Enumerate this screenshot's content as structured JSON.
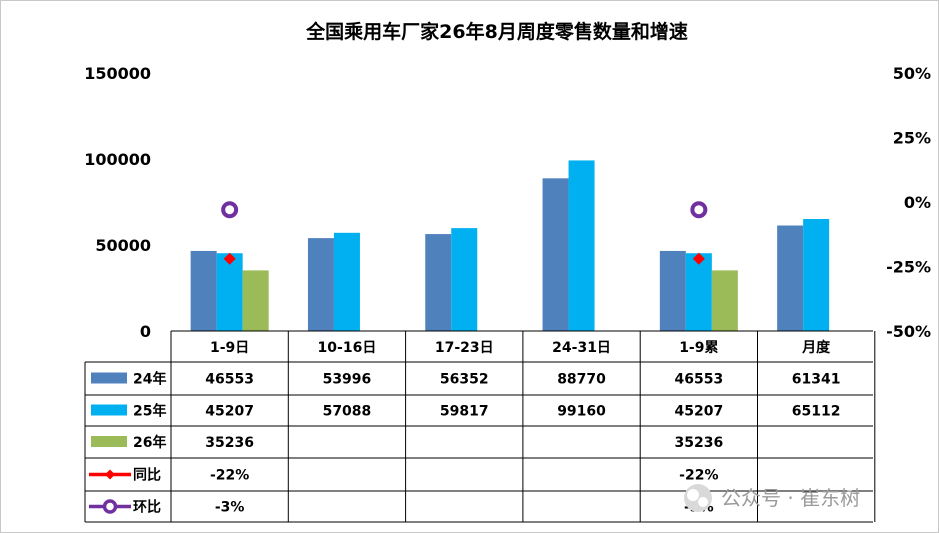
{
  "chart_data": {
    "type": "bar",
    "title": "全国乘用车厂家26年8月周度零售数量和增速",
    "categories": [
      "1-9日",
      "10-16日",
      "17-23日",
      "24-31日",
      "1-9累",
      "月度"
    ],
    "series": [
      {
        "name": "24年",
        "values": [
          46553,
          53996,
          56352,
          88770,
          46553,
          61341
        ],
        "color": "#4f81bd"
      },
      {
        "name": "25年",
        "values": [
          45207,
          57088,
          59817,
          99160,
          45207,
          65112
        ],
        "color": "#00b0f0"
      },
      {
        "name": "26年",
        "values": [
          35236,
          null,
          null,
          null,
          35236,
          null
        ],
        "color": "#9bbb59"
      }
    ],
    "secondary_series": [
      {
        "name": "同比",
        "values": [
          -0.22,
          null,
          null,
          null,
          -0.22,
          null
        ],
        "labels": [
          "-22%",
          "",
          "",
          "",
          "-22%",
          ""
        ],
        "color": "#ff0000",
        "marker": "diamond"
      },
      {
        "name": "环比",
        "values": [
          -0.03,
          null,
          null,
          null,
          -0.03,
          null
        ],
        "labels": [
          "-3%",
          "",
          "",
          "",
          "-3%",
          ""
        ],
        "color": "#7030a0",
        "marker": "circle"
      }
    ],
    "y_left": {
      "min": 0,
      "max": 150000,
      "ticks": [
        0,
        50000,
        100000,
        150000
      ],
      "tick_labels": [
        "0",
        "50000",
        "100000",
        "150000"
      ]
    },
    "y_right": {
      "min": -0.5,
      "max": 0.5,
      "ticks": [
        -0.5,
        -0.25,
        0,
        0.25,
        0.5
      ],
      "tick_labels": [
        "-50%",
        "-25%",
        "0%",
        "25%",
        "50%"
      ]
    },
    "grid": false,
    "legend": "data-table",
    "watermark": "公众号 · 崔东树"
  }
}
